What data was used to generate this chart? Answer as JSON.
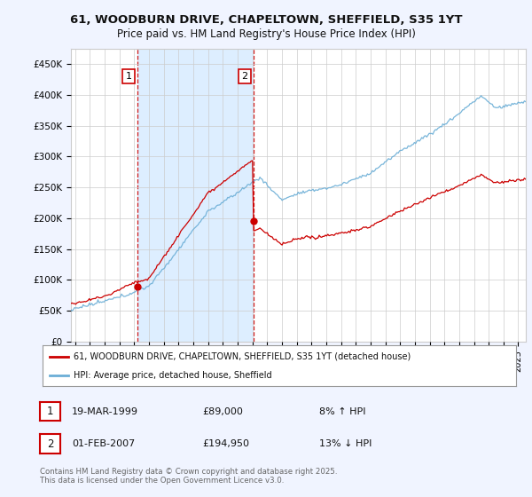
{
  "title": "61, WOODBURN DRIVE, CHAPELTOWN, SHEFFIELD, S35 1YT",
  "subtitle": "Price paid vs. HM Land Registry's House Price Index (HPI)",
  "ylim": [
    0,
    470000
  ],
  "xlim_start": 1994.7,
  "xlim_end": 2025.5,
  "legend_line1": "61, WOODBURN DRIVE, CHAPELTOWN, SHEFFIELD, S35 1YT (detached house)",
  "legend_line2": "HPI: Average price, detached house, Sheffield",
  "annotation1_date": "19-MAR-1999",
  "annotation1_price": "£89,000",
  "annotation1_hpi": "8% ↑ HPI",
  "annotation2_date": "01-FEB-2007",
  "annotation2_price": "£194,950",
  "annotation2_hpi": "13% ↓ HPI",
  "footnote": "Contains HM Land Registry data © Crown copyright and database right 2025.\nThis data is licensed under the Open Government Licence v3.0.",
  "sale1_year": 1999.21,
  "sale1_price": 89000,
  "sale2_year": 2007.08,
  "sale2_price": 194950,
  "hpi_color": "#6baed6",
  "price_color": "#cc0000",
  "shade_color": "#ddeeff",
  "background_color": "#f0f4ff",
  "plot_bg_color": "#ffffff",
  "grid_color": "#cccccc"
}
